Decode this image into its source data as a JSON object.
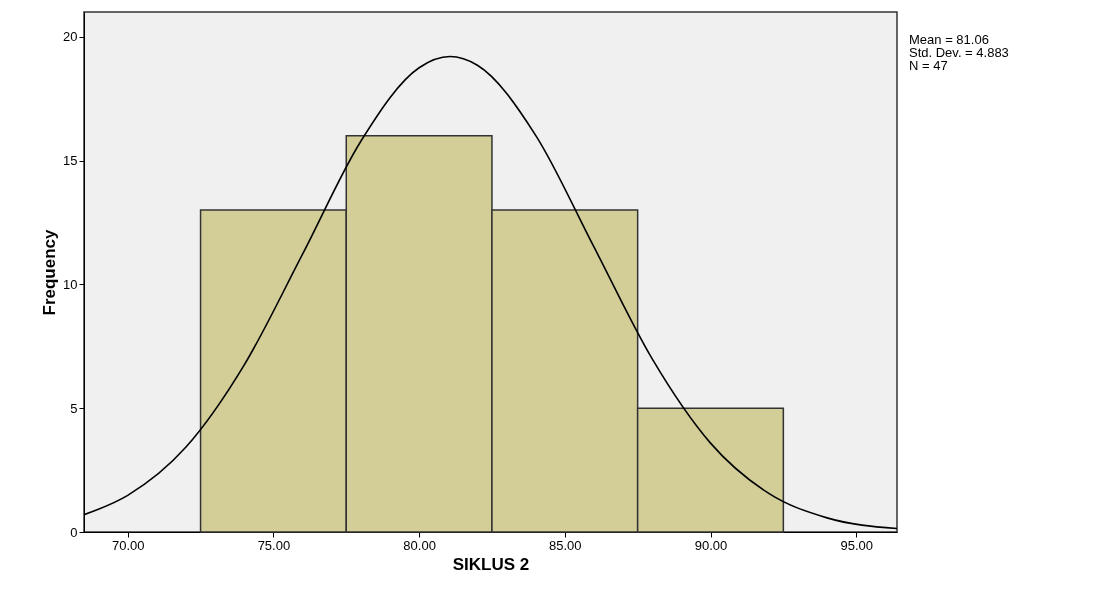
{
  "chart_data": {
    "type": "histogram",
    "xlabel": "SIKLUS 2",
    "ylabel": "Frequency",
    "bins": [
      72.5,
      77.5,
      82.5,
      87.5,
      92.5
    ],
    "values": [
      13,
      16,
      13,
      5
    ],
    "color": "#d3ce98",
    "series": [
      {
        "type": "line",
        "color": "#000000",
        "x": [
          68.5,
          70,
          72,
          74,
          76,
          78,
          80,
          81.06,
          82,
          84,
          86,
          88,
          90,
          92,
          94,
          96.4
        ],
        "values": [
          0.7,
          1.48,
          3.43,
          6.75,
          11.22,
          15.78,
          18.75,
          19.2,
          18.85,
          16.02,
          11.51,
          6.99,
          3.59,
          1.56,
          0.57,
          0.14
        ]
      }
    ],
    "xlim": [
      68.5,
      96.4
    ],
    "ylim": [
      0,
      21
    ],
    "xticks": [
      {
        "value": 70,
        "label": "70.00"
      },
      {
        "value": 75,
        "label": "75.00"
      },
      {
        "value": 80,
        "label": "80.00"
      },
      {
        "value": 85,
        "label": "85.00"
      },
      {
        "value": 90,
        "label": "90.00"
      },
      {
        "value": 95,
        "label": "95.00"
      }
    ],
    "yticks": [
      0,
      5,
      10,
      15,
      20
    ],
    "grid": false,
    "annotations": [
      "Mean = 81.06",
      "Std. Dev. = 4.883",
      "N = 47"
    ]
  }
}
